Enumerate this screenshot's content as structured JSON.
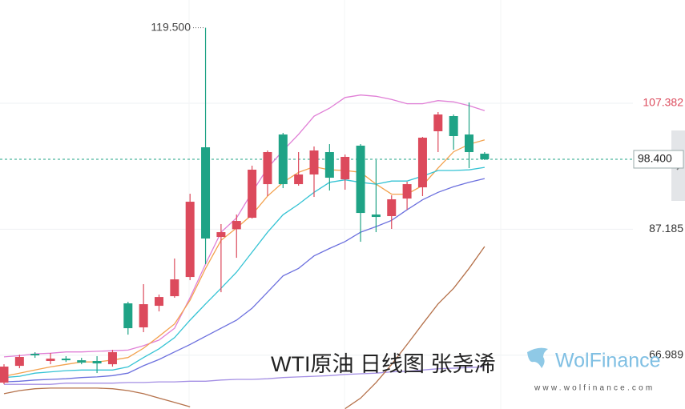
{
  "chart_data": {
    "type": "candlestick",
    "title": "WTI原油 日线图 张尧浠",
    "watermark": {
      "brand": "WolFinance",
      "url": "www.wolfinance.com"
    },
    "ylim": [
      58.35,
      123.94
    ],
    "yticks": [
      107.382,
      87.185,
      66.989
    ],
    "grid": true,
    "last_price": {
      "value": 98.4,
      "label": "98.400"
    },
    "high_label": {
      "value": 119.5,
      "label": "119.500"
    },
    "up_color": "#dc4a5c",
    "down_color": "#1fa386",
    "open": [
      62.58,
      65.27,
      67.2,
      66.05,
      66.43,
      66.17,
      66.05,
      65.53,
      75.29,
      71.44,
      74.9,
      76.44,
      79.52,
      100.32,
      85.94,
      87.18,
      89.02,
      94.41,
      102.37,
      94.41,
      95.96,
      99.55,
      95.18,
      100.58,
      89.54,
      89.28,
      92.1,
      93.9,
      102.89,
      105.33,
      102.37,
      99.29
    ],
    "high": [
      65.53,
      67.07,
      67.46,
      67.33,
      66.82,
      66.56,
      66.82,
      67.84,
      75.54,
      78.37,
      76.7,
      82.48,
      92.87,
      119.5,
      88.0,
      89.54,
      97.37,
      99.81,
      102.63,
      99.55,
      100.45,
      100.83,
      99.16,
      100.83,
      98.27,
      92.62,
      94.8,
      101.99,
      105.97,
      105.58,
      107.51,
      99.55
    ],
    "low": [
      62.32,
      64.89,
      66.56,
      65.53,
      65.9,
      65.53,
      64.12,
      65.15,
      70.28,
      70.67,
      74.0,
      76.19,
      79.01,
      81.58,
      77.08,
      82.6,
      88.89,
      92.49,
      93.77,
      94.16,
      92.36,
      93.39,
      93.52,
      85.17,
      86.71,
      87.23,
      90.31,
      92.49,
      99.55,
      99.93,
      96.98,
      98.27
    ],
    "close": [
      65.15,
      66.69,
      66.95,
      66.43,
      66.17,
      65.79,
      65.66,
      67.46,
      71.31,
      75.16,
      76.31,
      79.14,
      91.59,
      85.69,
      86.71,
      88.51,
      96.73,
      99.55,
      94.41,
      95.96,
      99.81,
      95.44,
      98.78,
      89.79,
      89.15,
      91.98,
      94.41,
      101.86,
      105.58,
      102.12,
      99.55,
      98.4
    ],
    "lines": [
      {
        "color": "#e07fd6",
        "values": [
          66.7,
          66.9,
          67.2,
          67.3,
          67.5,
          67.5,
          67.6,
          67.7,
          67.8,
          68.5,
          69.4,
          71.3,
          76.2,
          81.6,
          86.7,
          89.0,
          93.1,
          97.0,
          99.8,
          102.4,
          105.3,
          106.6,
          108.3,
          108.7,
          108.5,
          108.0,
          107.3,
          107.3,
          107.8,
          107.6,
          107.0,
          106.2
        ]
      },
      {
        "color": "#f3a24e",
        "values": [
          63.6,
          64.1,
          64.6,
          65.1,
          65.5,
          65.9,
          65.9,
          66.2,
          66.6,
          68.1,
          70.0,
          72.0,
          75.8,
          80.9,
          85.4,
          87.4,
          89.5,
          92.5,
          94.7,
          96.3,
          97.2,
          96.7,
          96.6,
          96.3,
          94.4,
          92.8,
          92.8,
          94.2,
          97.0,
          99.6,
          100.8,
          101.5
        ]
      },
      {
        "color": "#35c3d4",
        "values": [
          63.4,
          63.6,
          64.1,
          64.3,
          64.5,
          64.6,
          64.6,
          64.6,
          65.1,
          66.6,
          68.0,
          69.8,
          72.6,
          75.2,
          77.7,
          80.3,
          83.5,
          86.7,
          89.5,
          91.2,
          93.1,
          94.7,
          95.1,
          94.7,
          94.4,
          94.9,
          94.9,
          95.7,
          96.6,
          96.6,
          96.7,
          97.1
        ]
      },
      {
        "color": "#6c70de",
        "values": [
          62.7,
          62.8,
          63.0,
          63.1,
          63.2,
          63.4,
          63.5,
          63.7,
          64.1,
          65.3,
          66.3,
          67.5,
          68.7,
          70.0,
          71.3,
          72.6,
          74.5,
          77.1,
          79.7,
          80.9,
          82.9,
          84.1,
          85.2,
          86.7,
          87.6,
          88.6,
          90.3,
          91.9,
          93.1,
          94.0,
          94.7,
          95.3
        ]
      },
      {
        "color": "#a48fe4",
        "values": [
          62.3,
          62.3,
          62.3,
          62.3,
          62.5,
          62.5,
          62.5,
          62.5,
          62.6,
          62.6,
          62.7,
          62.7,
          62.8,
          62.8,
          63.0,
          63.1,
          63.1,
          63.2,
          63.4,
          63.5,
          63.6,
          63.7,
          63.9,
          64.0,
          64.1,
          64.3,
          64.4,
          64.6,
          64.8,
          64.9,
          65.0,
          65.1
        ]
      },
      {
        "color": "#b5714a",
        "values": [
          60.8,
          61.3,
          61.6,
          61.7,
          61.7,
          61.7,
          61.7,
          61.6,
          61.3,
          60.8,
          60.1,
          59.4,
          58.7,
          null,
          null,
          null,
          null,
          null,
          null,
          null,
          null,
          null,
          58.4,
          60.1,
          62.6,
          65.5,
          68.7,
          72.0,
          75.2,
          77.7,
          80.9,
          84.4
        ]
      }
    ]
  }
}
